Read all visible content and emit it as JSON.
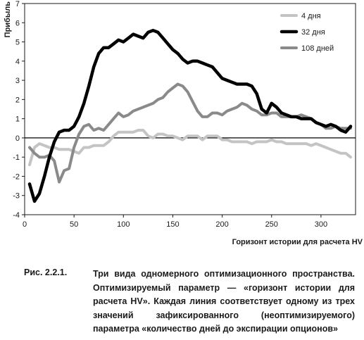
{
  "chart_data": {
    "type": "line",
    "ylabel": "Прибыль",
    "xlabel": "Горизонт истории для расчета HV",
    "xlim": [
      0,
      335
    ],
    "ylim": [
      -4,
      7
    ],
    "xticks": [
      0,
      50,
      100,
      150,
      200,
      250,
      300
    ],
    "yticks": [
      -4,
      -3,
      -2,
      -1,
      0,
      1,
      2,
      3,
      4,
      5,
      6,
      7
    ],
    "grid": false,
    "legend_position": "top-right",
    "series": [
      {
        "name": "4 дня",
        "color": "#c4c4c4",
        "stroke": 4,
        "x": [
          5,
          10,
          15,
          20,
          25,
          30,
          35,
          40,
          45,
          50,
          55,
          60,
          65,
          70,
          75,
          80,
          85,
          90,
          95,
          100,
          105,
          110,
          115,
          120,
          125,
          130,
          135,
          140,
          145,
          150,
          155,
          160,
          165,
          170,
          175,
          180,
          185,
          190,
          195,
          200,
          205,
          210,
          215,
          220,
          225,
          230,
          235,
          240,
          245,
          250,
          255,
          260,
          265,
          270,
          275,
          280,
          285,
          290,
          295,
          300,
          305,
          310,
          315,
          320,
          325,
          330
        ],
        "y": [
          -1.4,
          -0.5,
          -0.3,
          -0.4,
          -0.5,
          -0.5,
          -0.6,
          -0.6,
          -0.6,
          -0.7,
          -0.8,
          -0.5,
          -0.5,
          -0.4,
          -0.4,
          -0.4,
          -0.2,
          0.1,
          0.3,
          0.3,
          0.3,
          0.3,
          0.4,
          0.4,
          0.1,
          0.0,
          0.2,
          0.2,
          0.1,
          0.1,
          0.0,
          -0.1,
          0.1,
          0.1,
          0.1,
          -0.1,
          0.1,
          0.1,
          0.1,
          -0.1,
          -0.1,
          -0.2,
          -0.2,
          -0.2,
          -0.2,
          -0.3,
          -0.2,
          -0.2,
          -0.2,
          -0.1,
          -0.2,
          -0.2,
          -0.3,
          -0.3,
          -0.3,
          -0.3,
          -0.3,
          -0.4,
          -0.3,
          -0.4,
          -0.5,
          -0.6,
          -0.7,
          -0.8,
          -0.8,
          -1.0
        ]
      },
      {
        "name": "32 дня",
        "color": "#000000",
        "stroke": 4.5,
        "x": [
          5,
          10,
          15,
          20,
          25,
          30,
          35,
          40,
          45,
          50,
          55,
          60,
          65,
          70,
          75,
          80,
          85,
          90,
          95,
          100,
          105,
          110,
          115,
          120,
          125,
          130,
          135,
          140,
          145,
          150,
          155,
          160,
          165,
          170,
          175,
          180,
          185,
          190,
          195,
          200,
          205,
          210,
          215,
          220,
          225,
          230,
          235,
          240,
          245,
          250,
          255,
          260,
          265,
          270,
          275,
          280,
          285,
          290,
          295,
          300,
          305,
          310,
          315,
          320,
          325,
          330
        ],
        "y": [
          -2.4,
          -3.3,
          -2.9,
          -2.0,
          -1.0,
          -0.2,
          0.3,
          0.4,
          0.4,
          0.6,
          1.1,
          1.8,
          2.7,
          3.7,
          4.4,
          4.7,
          4.7,
          4.9,
          5.1,
          5.0,
          5.2,
          5.4,
          5.3,
          5.2,
          5.5,
          5.6,
          5.5,
          5.2,
          4.9,
          4.6,
          4.4,
          4.1,
          3.9,
          4.0,
          4.0,
          3.9,
          3.8,
          3.7,
          3.4,
          3.1,
          3.0,
          2.9,
          2.8,
          2.8,
          2.8,
          2.7,
          2.3,
          1.5,
          1.3,
          1.8,
          1.6,
          1.3,
          1.2,
          1.1,
          1.1,
          1.0,
          1.0,
          1.0,
          0.8,
          0.7,
          0.6,
          0.7,
          0.6,
          0.4,
          0.3,
          0.6
        ]
      },
      {
        "name": "108 дней",
        "color": "#8a8a8a",
        "stroke": 4,
        "x": [
          5,
          10,
          15,
          20,
          25,
          30,
          35,
          40,
          45,
          50,
          55,
          60,
          65,
          70,
          75,
          80,
          85,
          90,
          95,
          100,
          105,
          110,
          115,
          120,
          125,
          130,
          135,
          140,
          145,
          150,
          155,
          160,
          165,
          170,
          175,
          180,
          185,
          190,
          195,
          200,
          205,
          210,
          215,
          220,
          225,
          230,
          235,
          240,
          245,
          250,
          255,
          260,
          265,
          270,
          275,
          280,
          285,
          290,
          295,
          300,
          305,
          310,
          315,
          320,
          325,
          330
        ],
        "y": [
          -0.5,
          -0.8,
          -1.0,
          -1.0,
          -0.9,
          -1.2,
          -2.3,
          -1.7,
          -1.6,
          -0.5,
          0.2,
          0.6,
          0.7,
          0.4,
          0.5,
          0.4,
          0.7,
          1.0,
          1.3,
          1.1,
          1.2,
          1.4,
          1.5,
          1.6,
          1.7,
          1.8,
          2.0,
          2.1,
          2.4,
          2.6,
          2.8,
          2.7,
          2.4,
          1.9,
          1.4,
          1.1,
          1.1,
          1.3,
          1.3,
          1.2,
          1.4,
          1.5,
          1.6,
          1.8,
          1.7,
          1.5,
          1.4,
          1.2,
          1.2,
          1.3,
          1.3,
          1.1,
          1.1,
          1.1,
          1.1,
          1.2,
          1.1,
          1.0,
          0.8,
          0.7,
          0.5,
          0.5,
          0.6,
          0.5,
          0.5,
          0.5
        ]
      }
    ]
  },
  "caption": {
    "number": "Рис. 2.2.1.",
    "text": "Три вида одномерного оптимизационного пространства. Оп­тимизируемый параметр — «горизонт истории для расчета HV». Каждая линия соответствует одному из трех значений зафиксированного (неоптимизируемого) параметра «количе­ство дней до экспирации опционов»"
  }
}
